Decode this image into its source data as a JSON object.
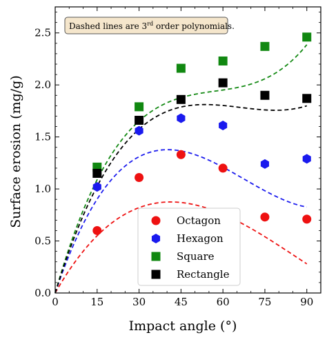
{
  "chart_data": {
    "type": "scatter",
    "title": "",
    "xlabel": "Impact angle (°)",
    "ylabel": "Surface erosion (mg/g)",
    "xlim": [
      0,
      95
    ],
    "ylim": [
      0,
      2.75
    ],
    "xticks": [
      0,
      15,
      30,
      45,
      60,
      75,
      90
    ],
    "yticks": [
      0.0,
      0.5,
      1.0,
      1.5,
      2.0,
      2.5
    ],
    "xtick_labels": [
      "0",
      "15",
      "30",
      "45",
      "60",
      "75",
      "90"
    ],
    "ytick_labels": [
      "0.0",
      "0.5",
      "1.0",
      "1.5",
      "2.0",
      "2.5"
    ],
    "grid": false,
    "legend_position": "lower-center",
    "annotation": {
      "pre": "Dashed lines are 3",
      "sup": "rd",
      "post": " order polynomials."
    },
    "series": [
      {
        "name": "Octagon",
        "marker": "circle",
        "color": "#ee1111",
        "x": [
          15,
          30,
          45,
          60,
          75,
          90
        ],
        "y": [
          0.6,
          1.11,
          1.33,
          1.2,
          0.73,
          0.71
        ],
        "fit": [
          0.0,
          0.0473,
          -0.000752,
          2.9e-06
        ]
      },
      {
        "name": "Hexagon",
        "marker": "hexagon",
        "color": "#1a1aee",
        "x": [
          15,
          30,
          45,
          60,
          75,
          90
        ],
        "y": [
          1.02,
          1.56,
          1.68,
          1.61,
          1.24,
          1.29
        ],
        "fit": [
          0.0,
          0.0797,
          -0.00141,
          6.96e-06
        ]
      },
      {
        "name": "Square",
        "marker": "square",
        "color": "#118811",
        "x": [
          15,
          30,
          45,
          60,
          75,
          90
        ],
        "y": [
          1.21,
          1.79,
          2.16,
          2.23,
          2.37,
          2.46
        ],
        "fit": [
          0.0,
          0.0942,
          -0.00158,
          9.2e-06
        ]
      },
      {
        "name": "Rectangle",
        "marker": "square",
        "color": "#000000",
        "x": [
          15,
          30,
          45,
          60,
          75,
          90
        ],
        "y": [
          1.15,
          1.66,
          1.86,
          2.02,
          1.9,
          1.87
        ],
        "fit": [
          0.0,
          0.0874,
          -0.00137,
          6.9e-06
        ]
      }
    ]
  }
}
